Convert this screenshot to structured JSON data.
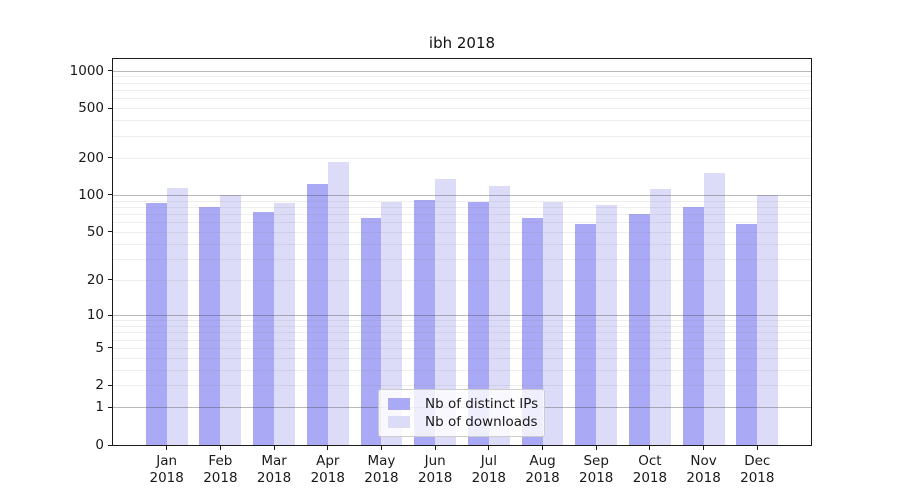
{
  "chart_data": {
    "type": "bar",
    "title": "ibh 2018",
    "categories": [
      "Jan",
      "Feb",
      "Mar",
      "Apr",
      "May",
      "Jun",
      "Jul",
      "Aug",
      "Sep",
      "Oct",
      "Nov",
      "Dec"
    ],
    "x_year_label": "2018",
    "series": [
      {
        "name": "Nb of distinct IPs",
        "color": "#a9a9f5",
        "values": [
          86,
          80,
          72,
          122,
          65,
          91,
          87,
          65,
          58,
          70,
          79,
          58
        ]
      },
      {
        "name": "Nb of downloads",
        "color": "#dcdcf9",
        "values": [
          113,
          100,
          86,
          185,
          88,
          135,
          117,
          88,
          82,
          112,
          149,
          100
        ]
      }
    ],
    "yscale": "log1p",
    "yticks": [
      0,
      1,
      2,
      5,
      10,
      20,
      50,
      100,
      200,
      500,
      1000
    ],
    "ylim": [
      0,
      1240
    ],
    "xlabel": "",
    "ylabel": "",
    "grid": true,
    "legend_position": "lower-center"
  }
}
